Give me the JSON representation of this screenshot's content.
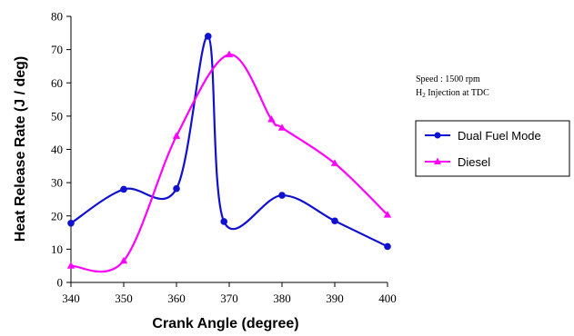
{
  "chart_data": {
    "type": "line",
    "xlabel": "Crank Angle (degree)",
    "ylabel": "Heat Release Rate (J / deg)",
    "xlim": [
      340,
      400
    ],
    "ylim": [
      0,
      80
    ],
    "xticks": [
      340,
      350,
      360,
      370,
      380,
      390,
      400
    ],
    "yticks": [
      0,
      10,
      20,
      30,
      40,
      50,
      60,
      70,
      80
    ],
    "grid": false,
    "legend_position": "right",
    "annotation": {
      "line1": "Speed : 1500 rpm",
      "line2_prefix": "H",
      "line2_subscript": "2",
      "line2_suffix": " Injection at TDC"
    },
    "series": [
      {
        "name": "Dual Fuel Mode",
        "color": "#1010d0",
        "marker": "circle",
        "x": [
          340,
          350,
          360,
          366,
          369,
          380,
          390,
          400
        ],
        "y": [
          17.8,
          28,
          28.2,
          74,
          18.3,
          26.2,
          18.5,
          10.8
        ]
      },
      {
        "name": "Diesel",
        "color": "#ff00ff",
        "marker": "triangle",
        "x": [
          340,
          350,
          360,
          370,
          378,
          380,
          390,
          400
        ],
        "y": [
          5,
          6.5,
          44,
          68.5,
          49,
          46.5,
          35.8,
          20.3
        ]
      }
    ]
  }
}
